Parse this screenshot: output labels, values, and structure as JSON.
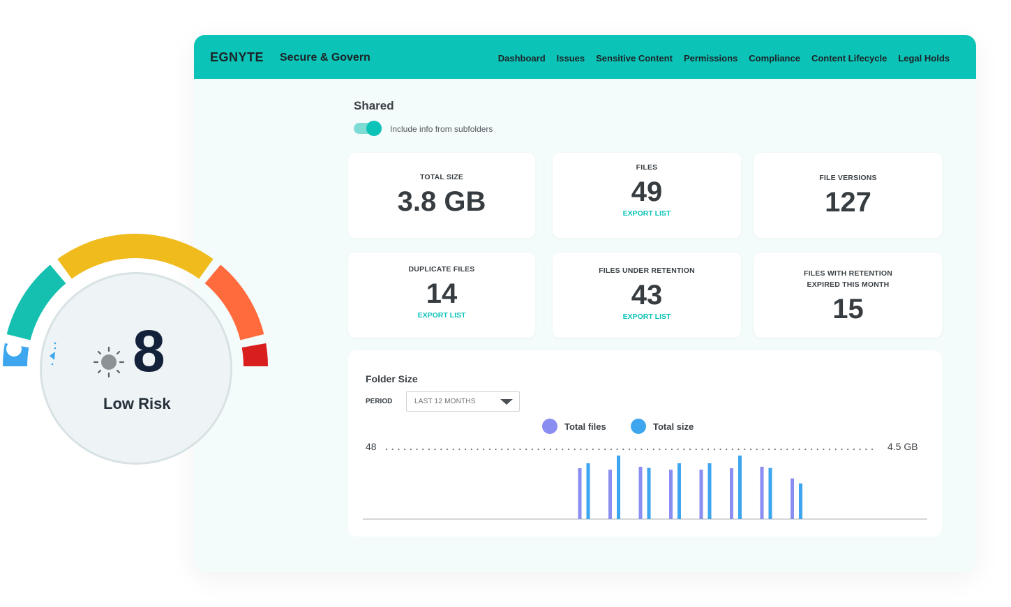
{
  "header": {
    "logo": "EGNYTE",
    "product": "Secure & Govern",
    "nav": [
      "Dashboard",
      "Issues",
      "Sensitive Content",
      "Permissions",
      "Compliance",
      "Content Lifecycle",
      "Legal Holds"
    ]
  },
  "section": {
    "title": "Shared",
    "toggle_label": "Include info from subfolders",
    "toggle_on": true
  },
  "stats": [
    {
      "label": "TOTAL SIZE",
      "value": "3.8 GB",
      "link": ""
    },
    {
      "label": "FILES",
      "value": "49",
      "link": "EXPORT LIST"
    },
    {
      "label": "FILE VERSIONS",
      "value": "127",
      "link": ""
    },
    {
      "label": "DUPLICATE FILES",
      "value": "14",
      "link": "EXPORT LIST"
    },
    {
      "label": "FILES UNDER RETENTION",
      "value": "43",
      "link": "EXPORT LIST"
    },
    {
      "label": "FILES WITH RETENTION EXPIRED THIS MONTH",
      "label_line1": "FILES WITH RETENTION",
      "label_line2": "EXPIRED THIS MONTH",
      "value": "15",
      "link": ""
    }
  ],
  "folder_size": {
    "title": "Folder Size",
    "period_label": "PERIOD",
    "period_value": "LAST 12 MONTHS",
    "legend": [
      {
        "name": "Total files",
        "color": "#8a8ef0"
      },
      {
        "name": "Total size",
        "color": "#3ea6ee"
      }
    ],
    "axis_left_max": "48",
    "axis_right_max": "4.5 GB"
  },
  "chart_data": {
    "type": "bar",
    "series": [
      {
        "name": "Total files",
        "color": "#8a8ef0",
        "values": [
          0,
          0,
          0,
          0,
          0,
          0,
          0,
          35,
          34,
          36,
          34,
          34,
          35,
          36,
          28
        ]
      },
      {
        "name": "Total size",
        "color": "#3ea6ee",
        "values": [
          0,
          0,
          0,
          0,
          0,
          0,
          0,
          3.6,
          4.1,
          3.3,
          3.6,
          3.6,
          4.1,
          3.3,
          2.3
        ]
      }
    ],
    "ylim_left": [
      0,
      48
    ],
    "ylim_right": [
      0,
      4.5
    ],
    "grid": false
  },
  "gauge": {
    "score": "8",
    "label": "Low Risk",
    "colors": [
      "#3ea6ee",
      "#16c0b0",
      "#f0bb1c",
      "#ff6b3d",
      "#d91e1e"
    ]
  }
}
